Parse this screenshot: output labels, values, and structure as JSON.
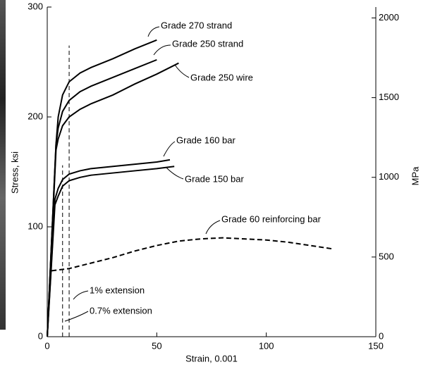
{
  "chart_data": {
    "type": "line",
    "xlabel": "Strain, 0.001",
    "ylabel": "Stress, ksi",
    "y2label": "MPa",
    "xlim": [
      0,
      150
    ],
    "xticks": [
      0,
      50,
      100,
      150
    ],
    "ylim": [
      0,
      300
    ],
    "yticks": [
      0,
      100,
      200,
      300
    ],
    "y2lim": [
      0,
      2068.4
    ],
    "y2ticks": [
      0,
      500,
      1000,
      1500,
      2000
    ],
    "series": [
      {
        "name": "Grade 270 strand",
        "color": "#000000",
        "dash": false,
        "x": [
          0,
          4,
          5,
          7,
          10,
          15,
          20,
          30,
          40,
          50
        ],
        "y": [
          0,
          175,
          200,
          220,
          232,
          240,
          245,
          253,
          262,
          270
        ]
      },
      {
        "name": "Grade 250 strand",
        "color": "#000000",
        "dash": false,
        "x": [
          0,
          4,
          5,
          7,
          10,
          15,
          20,
          30,
          40,
          50
        ],
        "y": [
          0,
          175,
          190,
          205,
          215,
          223,
          228,
          236,
          244,
          252
        ]
      },
      {
        "name": "Grade 250 wire",
        "color": "#000000",
        "dash": false,
        "x": [
          0,
          4,
          5,
          7,
          10,
          15,
          20,
          30,
          40,
          50,
          60
        ],
        "y": [
          0,
          170,
          180,
          192,
          200,
          207,
          212,
          220,
          230,
          239,
          249
        ]
      },
      {
        "name": "Grade 160 bar",
        "color": "#000000",
        "dash": false,
        "x": [
          0,
          3.5,
          5,
          7,
          10,
          15,
          20,
          30,
          40,
          50,
          56
        ],
        "y": [
          0,
          125,
          135,
          143,
          148,
          151,
          153,
          155,
          157,
          159,
          161
        ]
      },
      {
        "name": "Grade 150 bar",
        "color": "#000000",
        "dash": false,
        "x": [
          0,
          3.5,
          5,
          7,
          10,
          15,
          20,
          30,
          40,
          50,
          58
        ],
        "y": [
          0,
          120,
          128,
          137,
          142,
          145,
          147,
          149,
          151,
          153,
          155
        ]
      },
      {
        "name": "Grade 60 reinforcing bar",
        "color": "#000000",
        "dash": true,
        "x": [
          2,
          10,
          20,
          30,
          40,
          50,
          60,
          70,
          80,
          90,
          100,
          110,
          120,
          130
        ],
        "y": [
          60,
          62,
          67,
          72,
          78,
          83,
          87,
          89,
          90,
          89,
          88,
          86,
          83,
          80
        ]
      }
    ],
    "reference_lines": [
      {
        "label": "1% extension",
        "x": 10,
        "y": [
          0,
          265
        ]
      },
      {
        "label": "0.7% extension",
        "x": 7,
        "y": [
          0,
          156
        ]
      }
    ]
  }
}
